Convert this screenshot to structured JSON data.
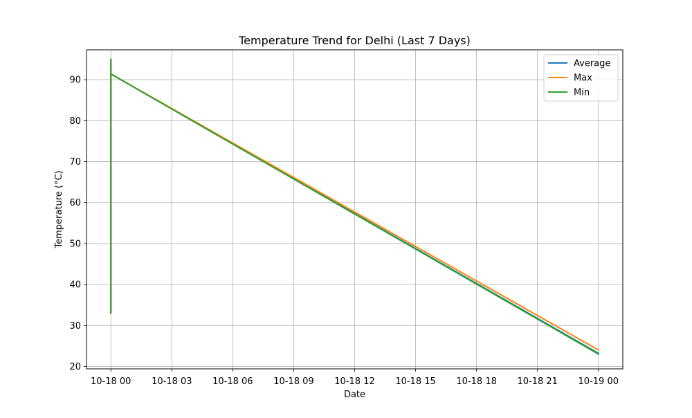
{
  "chart_data": {
    "type": "line",
    "title": "Temperature Trend for Delhi (Last 7 Days)",
    "xlabel": "Date",
    "ylabel": "Temperature (°C)",
    "x_ticks": [
      "10-18 00",
      "10-18 03",
      "10-18 06",
      "10-18 09",
      "10-18 12",
      "10-18 15",
      "10-18 18",
      "10-18 21",
      "10-19 00"
    ],
    "x_tick_hours": [
      0,
      3,
      6,
      9,
      12,
      15,
      18,
      21,
      24
    ],
    "xlim_hours": [
      -1.2,
      25.2
    ],
    "y_ticks": [
      20,
      30,
      40,
      50,
      60,
      70,
      80,
      90
    ],
    "ylim": [
      19.4,
      97.3
    ],
    "grid": true,
    "legend_position": "top-right",
    "series": [
      {
        "name": "Average",
        "color": "#1f77b4",
        "points": [
          {
            "hour": 0,
            "value": 33
          },
          {
            "hour": 0,
            "value": 95
          },
          {
            "hour": 0,
            "value": 91.4
          },
          {
            "hour": 24,
            "value": 23.2
          }
        ]
      },
      {
        "name": "Max",
        "color": "#ff7f0e",
        "points": [
          {
            "hour": 0,
            "value": 33
          },
          {
            "hour": 0,
            "value": 95
          },
          {
            "hour": 0,
            "value": 91.4
          },
          {
            "hour": 24,
            "value": 24
          }
        ]
      },
      {
        "name": "Min",
        "color": "#2ca02c",
        "points": [
          {
            "hour": 0,
            "value": 33
          },
          {
            "hour": 0,
            "value": 95
          },
          {
            "hour": 0,
            "value": 91.4
          },
          {
            "hour": 24,
            "value": 23
          }
        ]
      }
    ]
  }
}
